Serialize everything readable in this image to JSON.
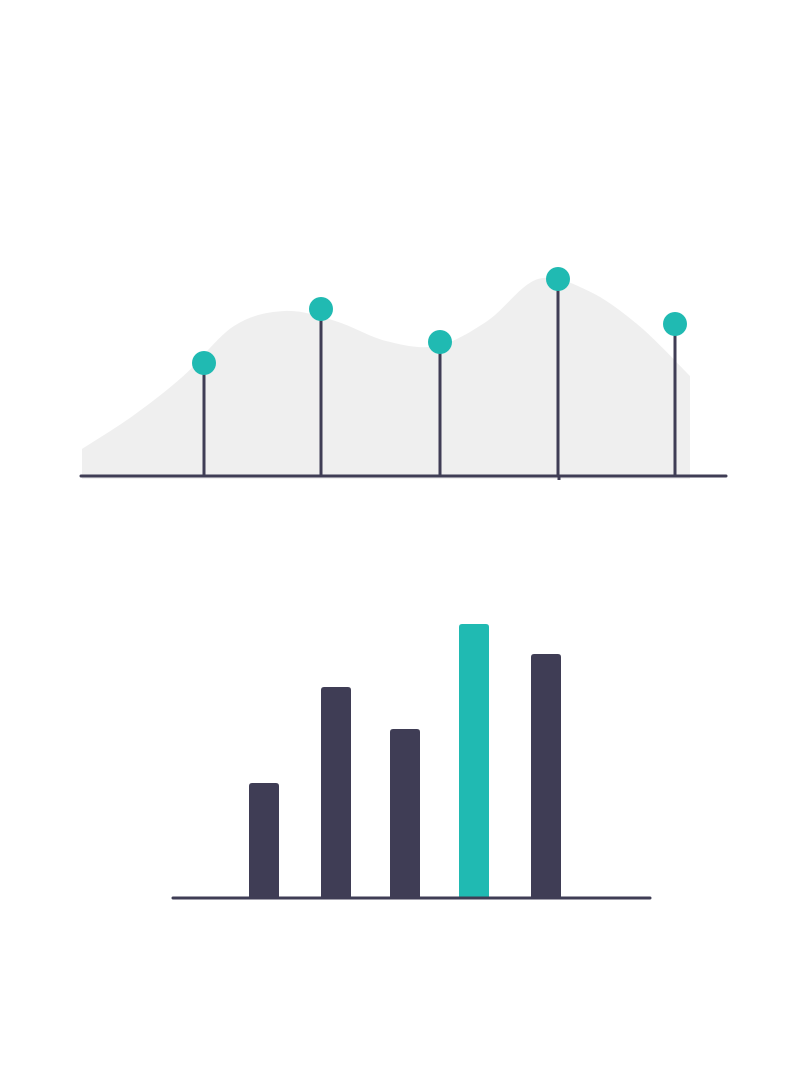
{
  "colors": {
    "accent": "#20bab2",
    "dark": "#3f3d55",
    "area": "#efefef",
    "background": "#ffffff"
  },
  "chart_data": [
    {
      "type": "line",
      "title": "",
      "xlabel": "",
      "ylabel": "",
      "x": [
        1,
        2,
        3,
        4,
        5
      ],
      "series": [
        {
          "values": [
            113,
            167,
            134,
            197,
            152
          ]
        }
      ],
      "area_curve": [
        27,
        60,
        100,
        150,
        165,
        155,
        135,
        130,
        155,
        197,
        185,
        150,
        100
      ],
      "ylim": [
        0,
        215
      ],
      "grid": false,
      "legend": "none",
      "highlight_color": "#20bab2",
      "line_color": "#3f3d55",
      "area_color": "#efefef"
    },
    {
      "type": "bar",
      "title": "",
      "xlabel": "",
      "ylabel": "",
      "categories": [
        "",
        "",
        "",
        "",
        ""
      ],
      "values": [
        115,
        211,
        169,
        274,
        244
      ],
      "ylim": [
        0,
        274
      ],
      "grid": false,
      "legend": "none",
      "highlight_index": 3,
      "bar_color": "#3f3d55",
      "highlight_color": "#20bab2"
    }
  ]
}
